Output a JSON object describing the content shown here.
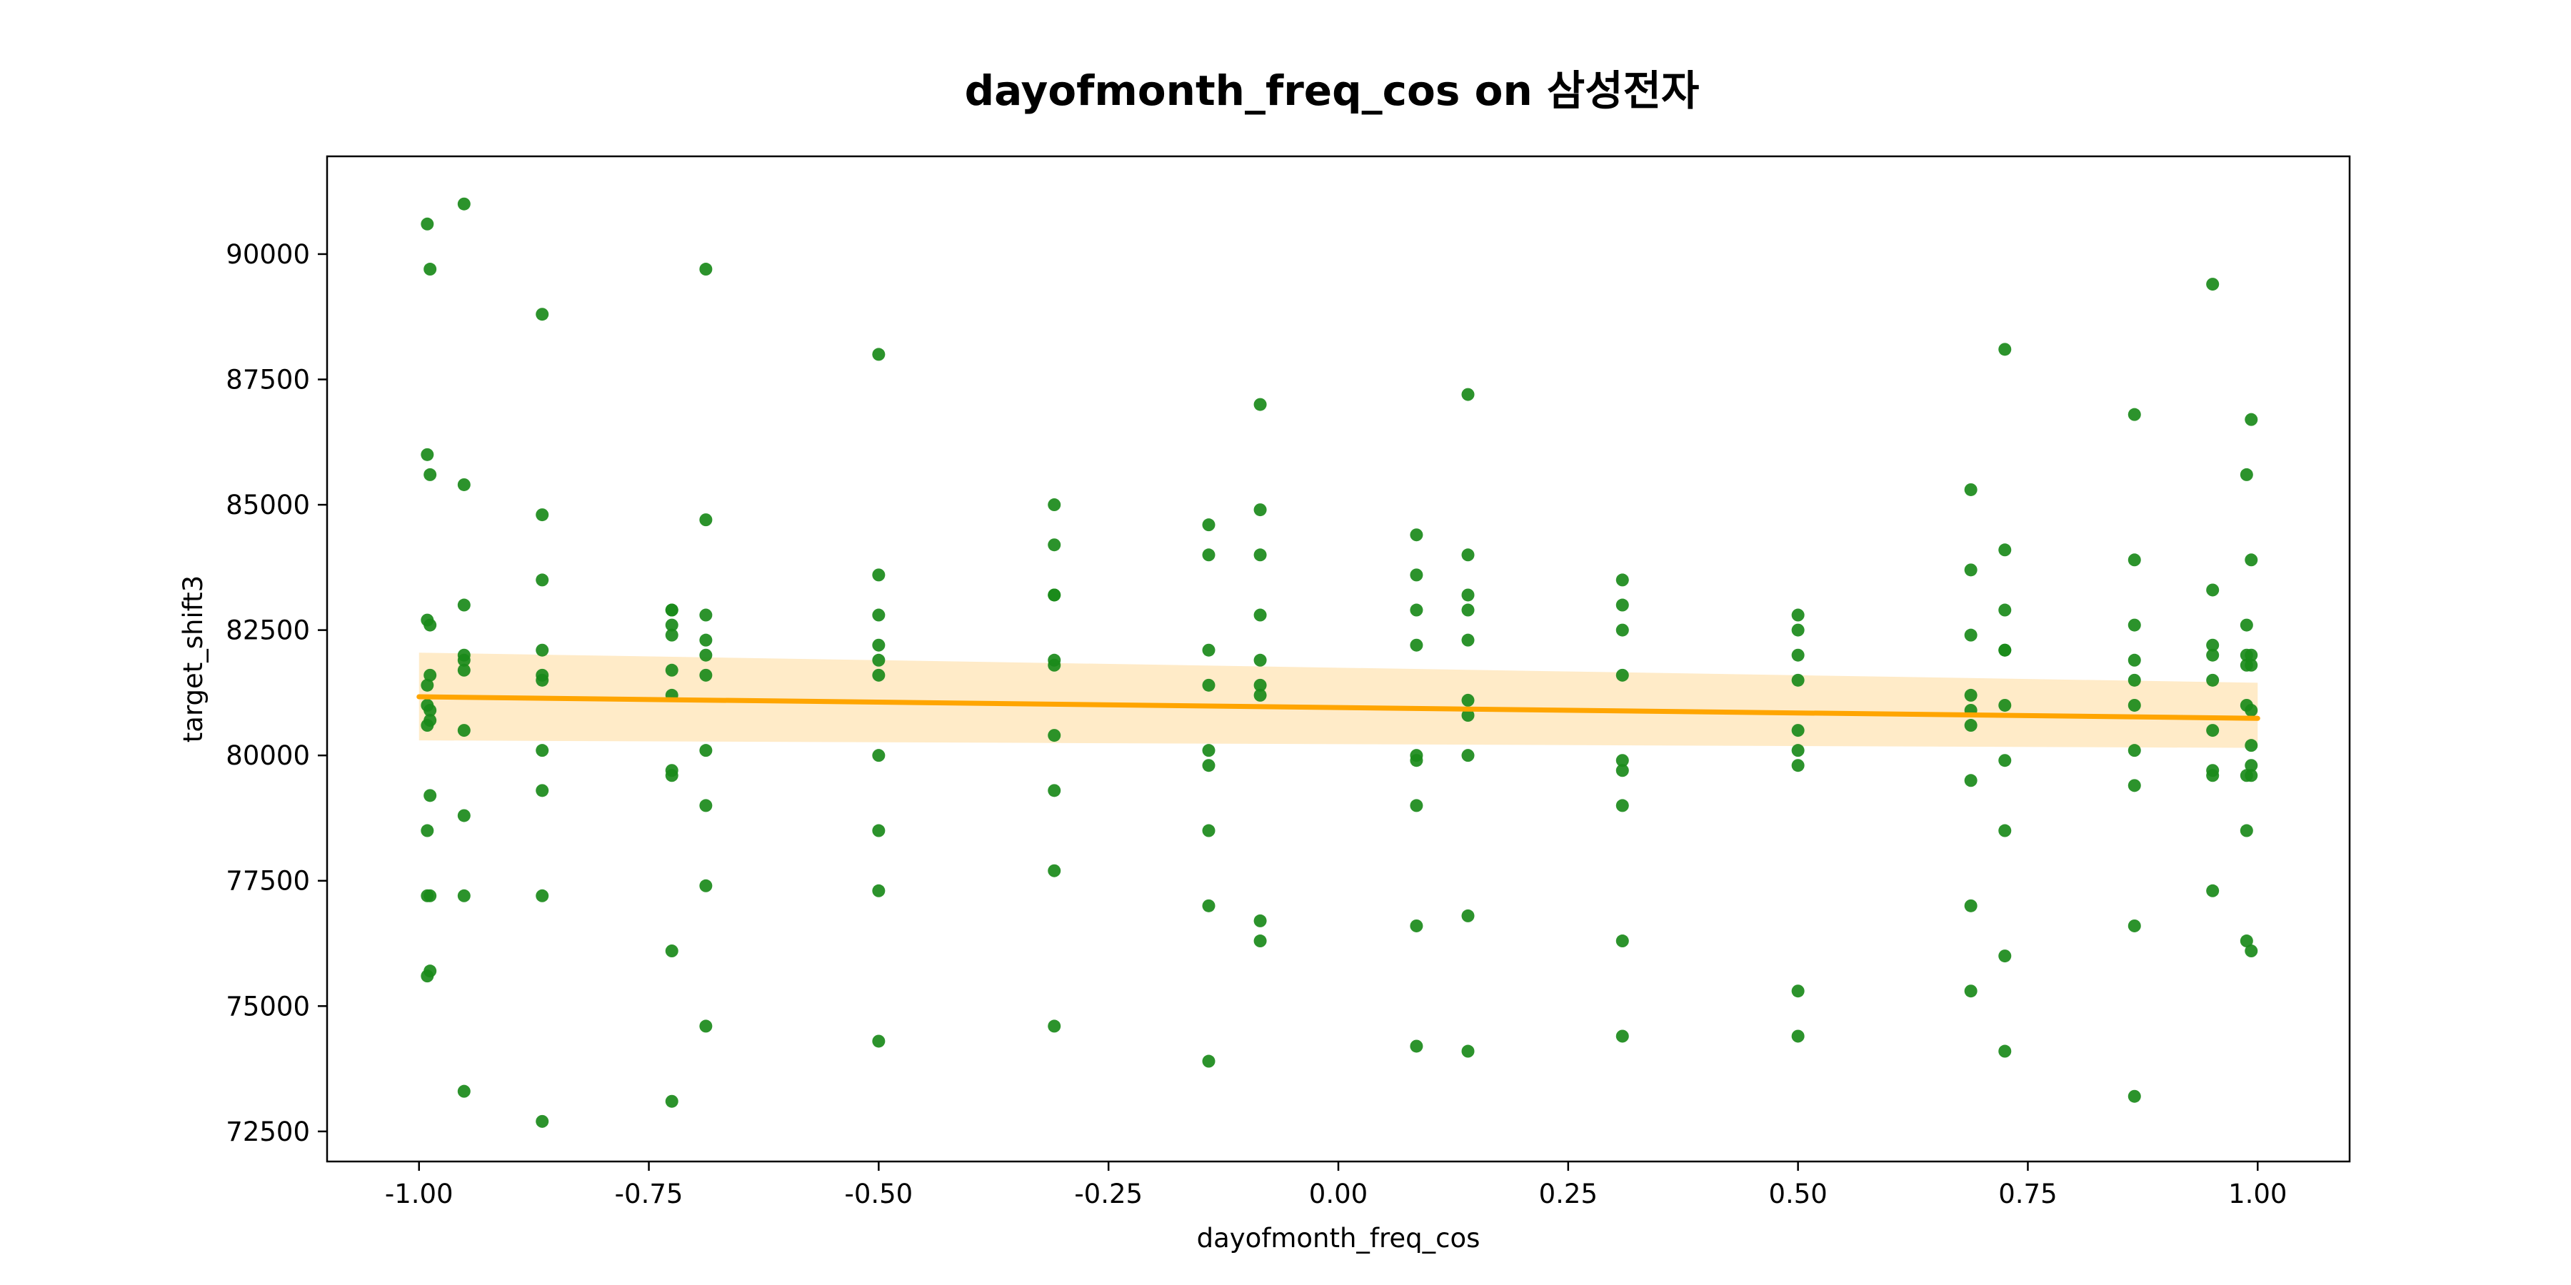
{
  "chart_data": {
    "type": "scatter",
    "title": "dayofmonth_freq_cos on 삼성전자",
    "xlabel": "dayofmonth_freq_cos",
    "ylabel": "target_shift3",
    "xlim": [
      -1.1,
      1.1
    ],
    "ylim": [
      71900,
      91950
    ],
    "xticks": [
      -1.0,
      -0.75,
      -0.5,
      -0.25,
      0.0,
      0.25,
      0.5,
      0.75,
      1.0
    ],
    "xtick_labels": [
      "-1.00",
      "-0.75",
      "-0.50",
      "-0.25",
      "0.00",
      "0.25",
      "0.50",
      "0.75",
      "1.00"
    ],
    "yticks": [
      72500,
      75000,
      77500,
      80000,
      82500,
      85000,
      87500,
      90000
    ],
    "ytick_labels": [
      "72500",
      "75000",
      "77500",
      "80000",
      "82500",
      "85000",
      "87500",
      "90000"
    ],
    "grid": false,
    "colors": {
      "points": "#1a8a1a",
      "regression": "#ffa500",
      "ci_band": "#ffebc8"
    },
    "regression": {
      "x": [
        -1.0,
        1.0
      ],
      "y": [
        81170,
        80740
      ],
      "ci_lower": [
        80300,
        80150
      ],
      "ci_upper": [
        82050,
        81450
      ]
    },
    "points": [
      [
        -0.991,
        90600
      ],
      [
        -0.991,
        86000
      ],
      [
        -0.991,
        82700
      ],
      [
        -0.991,
        81400
      ],
      [
        -0.991,
        81000
      ],
      [
        -0.991,
        80600
      ],
      [
        -0.991,
        78500
      ],
      [
        -0.991,
        77200
      ],
      [
        -0.991,
        75600
      ],
      [
        -0.988,
        89700
      ],
      [
        -0.988,
        85600
      ],
      [
        -0.988,
        82600
      ],
      [
        -0.988,
        81600
      ],
      [
        -0.988,
        80900
      ],
      [
        -0.988,
        80700
      ],
      [
        -0.988,
        79200
      ],
      [
        -0.988,
        77200
      ],
      [
        -0.988,
        75700
      ],
      [
        -0.951,
        91000
      ],
      [
        -0.951,
        85400
      ],
      [
        -0.951,
        83000
      ],
      [
        -0.951,
        82000
      ],
      [
        -0.951,
        81900
      ],
      [
        -0.951,
        81700
      ],
      [
        -0.951,
        80500
      ],
      [
        -0.951,
        78800
      ],
      [
        -0.951,
        77200
      ],
      [
        -0.951,
        73300
      ],
      [
        -0.866,
        88800
      ],
      [
        -0.866,
        84800
      ],
      [
        -0.866,
        83500
      ],
      [
        -0.866,
        82100
      ],
      [
        -0.866,
        81600
      ],
      [
        -0.866,
        81500
      ],
      [
        -0.866,
        80100
      ],
      [
        -0.866,
        79300
      ],
      [
        -0.866,
        77200
      ],
      [
        -0.866,
        72700
      ],
      [
        -0.725,
        82900
      ],
      [
        -0.725,
        82900
      ],
      [
        -0.725,
        82600
      ],
      [
        -0.725,
        82400
      ],
      [
        -0.725,
        81700
      ],
      [
        -0.725,
        81200
      ],
      [
        -0.725,
        79700
      ],
      [
        -0.725,
        79600
      ],
      [
        -0.725,
        76100
      ],
      [
        -0.725,
        73100
      ],
      [
        -0.688,
        89700
      ],
      [
        -0.688,
        84700
      ],
      [
        -0.688,
        82800
      ],
      [
        -0.688,
        82300
      ],
      [
        -0.688,
        82000
      ],
      [
        -0.688,
        81600
      ],
      [
        -0.688,
        80100
      ],
      [
        -0.688,
        79000
      ],
      [
        -0.688,
        77400
      ],
      [
        -0.688,
        74600
      ],
      [
        -0.5,
        88000
      ],
      [
        -0.5,
        83600
      ],
      [
        -0.5,
        82800
      ],
      [
        -0.5,
        82200
      ],
      [
        -0.5,
        81900
      ],
      [
        -0.5,
        81600
      ],
      [
        -0.5,
        80000
      ],
      [
        -0.5,
        78500
      ],
      [
        -0.5,
        77300
      ],
      [
        -0.5,
        74300
      ],
      [
        -0.309,
        85000
      ],
      [
        -0.309,
        84200
      ],
      [
        -0.309,
        83200
      ],
      [
        -0.309,
        83200
      ],
      [
        -0.309,
        81900
      ],
      [
        -0.309,
        81800
      ],
      [
        -0.309,
        80400
      ],
      [
        -0.309,
        79300
      ],
      [
        -0.309,
        77700
      ],
      [
        -0.309,
        74600
      ],
      [
        -0.141,
        84600
      ],
      [
        -0.141,
        84000
      ],
      [
        -0.141,
        82100
      ],
      [
        -0.141,
        81400
      ],
      [
        -0.141,
        80100
      ],
      [
        -0.141,
        79800
      ],
      [
        -0.141,
        78500
      ],
      [
        -0.141,
        77000
      ],
      [
        -0.141,
        73900
      ],
      [
        -0.085,
        87000
      ],
      [
        -0.085,
        84900
      ],
      [
        -0.085,
        84000
      ],
      [
        -0.085,
        82800
      ],
      [
        -0.085,
        81900
      ],
      [
        -0.085,
        81400
      ],
      [
        -0.085,
        81200
      ],
      [
        -0.085,
        76700
      ],
      [
        -0.085,
        76300
      ],
      [
        0.085,
        84400
      ],
      [
        0.085,
        83600
      ],
      [
        0.085,
        82900
      ],
      [
        0.085,
        82200
      ],
      [
        0.085,
        80000
      ],
      [
        0.085,
        79900
      ],
      [
        0.085,
        79000
      ],
      [
        0.085,
        76600
      ],
      [
        0.085,
        74200
      ],
      [
        0.141,
        87200
      ],
      [
        0.141,
        84000
      ],
      [
        0.141,
        83200
      ],
      [
        0.141,
        82900
      ],
      [
        0.141,
        82300
      ],
      [
        0.141,
        81100
      ],
      [
        0.141,
        80800
      ],
      [
        0.141,
        80000
      ],
      [
        0.141,
        76800
      ],
      [
        0.141,
        74100
      ],
      [
        0.309,
        83500
      ],
      [
        0.309,
        83000
      ],
      [
        0.309,
        82500
      ],
      [
        0.309,
        81600
      ],
      [
        0.309,
        79900
      ],
      [
        0.309,
        79700
      ],
      [
        0.309,
        79000
      ],
      [
        0.309,
        76300
      ],
      [
        0.309,
        74400
      ],
      [
        0.5,
        82800
      ],
      [
        0.5,
        82500
      ],
      [
        0.5,
        82000
      ],
      [
        0.5,
        81500
      ],
      [
        0.5,
        80500
      ],
      [
        0.5,
        80100
      ],
      [
        0.5,
        79800
      ],
      [
        0.5,
        75300
      ],
      [
        0.5,
        74400
      ],
      [
        0.688,
        85300
      ],
      [
        0.688,
        83700
      ],
      [
        0.688,
        82400
      ],
      [
        0.688,
        81200
      ],
      [
        0.688,
        80900
      ],
      [
        0.688,
        80600
      ],
      [
        0.688,
        79500
      ],
      [
        0.688,
        77000
      ],
      [
        0.688,
        75300
      ],
      [
        0.725,
        88100
      ],
      [
        0.725,
        84100
      ],
      [
        0.725,
        82900
      ],
      [
        0.725,
        82100
      ],
      [
        0.725,
        82100
      ],
      [
        0.725,
        81000
      ],
      [
        0.725,
        79900
      ],
      [
        0.725,
        78500
      ],
      [
        0.725,
        76000
      ],
      [
        0.725,
        74100
      ],
      [
        0.866,
        86800
      ],
      [
        0.866,
        83900
      ],
      [
        0.866,
        82600
      ],
      [
        0.866,
        81900
      ],
      [
        0.866,
        81500
      ],
      [
        0.866,
        81000
      ],
      [
        0.866,
        80100
      ],
      [
        0.866,
        79400
      ],
      [
        0.866,
        76600
      ],
      [
        0.866,
        73200
      ],
      [
        0.951,
        89400
      ],
      [
        0.951,
        83300
      ],
      [
        0.951,
        82200
      ],
      [
        0.951,
        82000
      ],
      [
        0.951,
        81500
      ],
      [
        0.951,
        80500
      ],
      [
        0.951,
        79700
      ],
      [
        0.951,
        79600
      ],
      [
        0.951,
        77300
      ],
      [
        0.988,
        85600
      ],
      [
        0.988,
        82600
      ],
      [
        0.988,
        82000
      ],
      [
        0.988,
        81800
      ],
      [
        0.988,
        81000
      ],
      [
        0.988,
        79600
      ],
      [
        0.988,
        78500
      ],
      [
        0.988,
        76300
      ],
      [
        0.993,
        86700
      ],
      [
        0.993,
        83900
      ],
      [
        0.993,
        82000
      ],
      [
        0.993,
        81800
      ],
      [
        0.993,
        80900
      ],
      [
        0.993,
        80200
      ],
      [
        0.993,
        79800
      ],
      [
        0.993,
        79600
      ],
      [
        0.993,
        76100
      ]
    ]
  }
}
